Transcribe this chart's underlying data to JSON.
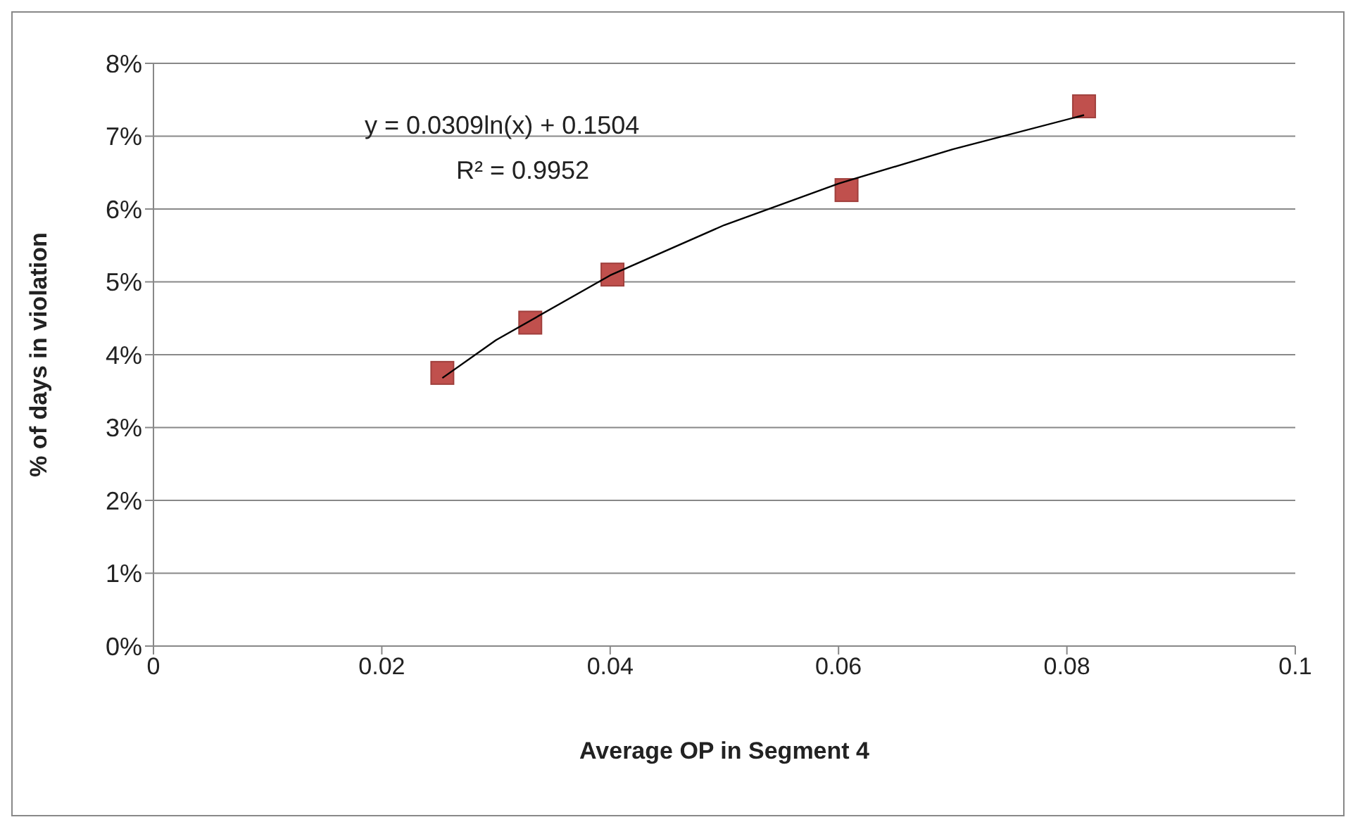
{
  "chart_data": {
    "type": "scatter",
    "xlabel": "Average OP in Segment 4",
    "ylabel": "% of days in violation",
    "annotations": [
      "y = 0.0309ln(x) + 0.1504",
      "R² = 0.9952"
    ],
    "series": [
      {
        "color": "#c0504d",
        "marker": "square",
        "x": [
          0.0253,
          0.033,
          0.0402,
          0.0607,
          0.0815
        ],
        "values": [
          0.0375,
          0.0444,
          0.051,
          0.0626,
          0.0741
        ]
      },
      {
        "type": "line",
        "color": "#000000",
        "marker": "none",
        "x": [
          0.0253,
          0.03,
          0.04,
          0.05,
          0.06,
          0.07,
          0.0815
        ],
        "values": [
          0.0368,
          0.042,
          0.0509,
          0.0578,
          0.0635,
          0.0682,
          0.0729
        ]
      }
    ],
    "xlim": [
      0,
      0.1
    ],
    "xticks": [
      0,
      0.02,
      0.04,
      0.06,
      0.08,
      0.1
    ],
    "ylim": [
      0,
      0.08
    ],
    "yticks": [
      {
        "value": 0,
        "label": "0%"
      },
      {
        "value": 0.01,
        "label": "1%"
      },
      {
        "value": 0.02,
        "label": "2%"
      },
      {
        "value": 0.03,
        "label": "3%"
      },
      {
        "value": 0.04,
        "label": "4%"
      },
      {
        "value": 0.05,
        "label": "5%"
      },
      {
        "value": 0.06,
        "label": "6%"
      },
      {
        "value": 0.07,
        "label": "7%"
      },
      {
        "value": 0.08,
        "label": "8%"
      }
    ],
    "grid": "y",
    "legend": false
  }
}
